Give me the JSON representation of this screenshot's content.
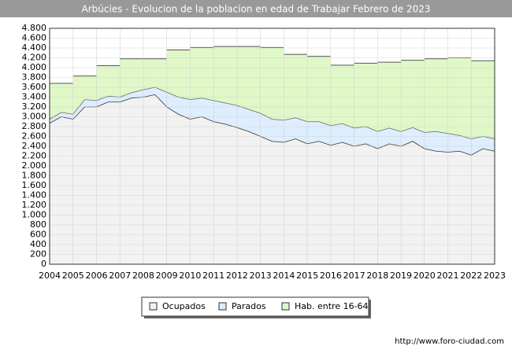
{
  "chart_data": {
    "type": "area",
    "title": "Arbúcies - Evolucion de la poblacion en edad de Trabajar Febrero de 2023",
    "source": "http://www.foro-ciudad.com",
    "x": [
      2004,
      2004.5,
      2005,
      2005.5,
      2006,
      2006.5,
      2007,
      2007.5,
      2008,
      2008.5,
      2009,
      2009.5,
      2010,
      2010.5,
      2011,
      2011.5,
      2012,
      2012.5,
      2013,
      2013.5,
      2014,
      2014.5,
      2015,
      2015.5,
      2016,
      2016.5,
      2017,
      2017.5,
      2018,
      2018.5,
      2019,
      2019.5,
      2020,
      2020.5,
      2021,
      2021.5,
      2022,
      2022.5,
      2023
    ],
    "series": [
      {
        "name": "Ocupados",
        "color": "#f2f2f2",
        "values": [
          2870,
          3000,
          2950,
          3200,
          3200,
          3300,
          3300,
          3380,
          3400,
          3450,
          3200,
          3050,
          2950,
          3000,
          2900,
          2850,
          2780,
          2700,
          2600,
          2500,
          2480,
          2550,
          2450,
          2500,
          2420,
          2480,
          2400,
          2450,
          2350,
          2450,
          2400,
          2500,
          2350,
          2300,
          2280,
          2300,
          2220,
          2350,
          2300
        ]
      },
      {
        "name": "Parados",
        "color": "#ddeeff",
        "stacked": true,
        "values": [
          80,
          90,
          100,
          150,
          130,
          120,
          100,
          110,
          150,
          150,
          300,
          350,
          400,
          380,
          430,
          430,
          450,
          450,
          470,
          450,
          450,
          430,
          450,
          400,
          400,
          380,
          370,
          350,
          350,
          320,
          300,
          280,
          330,
          400,
          380,
          320,
          330,
          250,
          250
        ]
      },
      {
        "name": "Hab. entre 16-64",
        "color": "#e0f8c8",
        "step": true,
        "x": [
          2004,
          2005,
          2006,
          2007,
          2008,
          2009,
          2010,
          2011,
          2012,
          2013,
          2014,
          2015,
          2016,
          2017,
          2018,
          2019,
          2020,
          2021,
          2022
        ],
        "values": [
          3680,
          3830,
          4040,
          4180,
          4180,
          4360,
          4410,
          4430,
          4430,
          4410,
          4270,
          4230,
          4050,
          4090,
          4110,
          4150,
          4180,
          4200,
          4140
        ]
      }
    ],
    "xlim": [
      2004,
      2023
    ],
    "xticks": [
      2004,
      2005,
      2006,
      2007,
      2008,
      2009,
      2010,
      2011,
      2012,
      2013,
      2014,
      2015,
      2016,
      2017,
      2018,
      2019,
      2020,
      2021,
      2022,
      2023
    ],
    "ylim": [
      0,
      4800
    ],
    "yticks": [
      0,
      200,
      400,
      600,
      800,
      {
        "value": 1000,
        "label": "1.000"
      },
      {
        "value": 1200,
        "label": "1.200"
      },
      {
        "value": 1400,
        "label": "1.400"
      },
      {
        "value": 1600,
        "label": "1.600"
      },
      {
        "value": 1800,
        "label": "1.800"
      },
      {
        "value": 2000,
        "label": "2.000"
      },
      {
        "value": 2200,
        "label": "2.200"
      },
      {
        "value": 2400,
        "label": "2.400"
      },
      {
        "value": 2600,
        "label": "2.600"
      },
      {
        "value": 2800,
        "label": "2.800"
      },
      {
        "value": 3000,
        "label": "3.000"
      },
      {
        "value": 3200,
        "label": "3.200"
      },
      {
        "value": 3400,
        "label": "3.400"
      },
      {
        "value": 3600,
        "label": "3.600"
      },
      {
        "value": 3800,
        "label": "3.800"
      },
      {
        "value": 4000,
        "label": "4.000"
      },
      {
        "value": 4200,
        "label": "4.200"
      },
      {
        "value": 4400,
        "label": "4.400"
      },
      {
        "value": 4600,
        "label": "4.600"
      },
      {
        "value": 4800,
        "label": "4.800"
      }
    ],
    "grid": true
  }
}
